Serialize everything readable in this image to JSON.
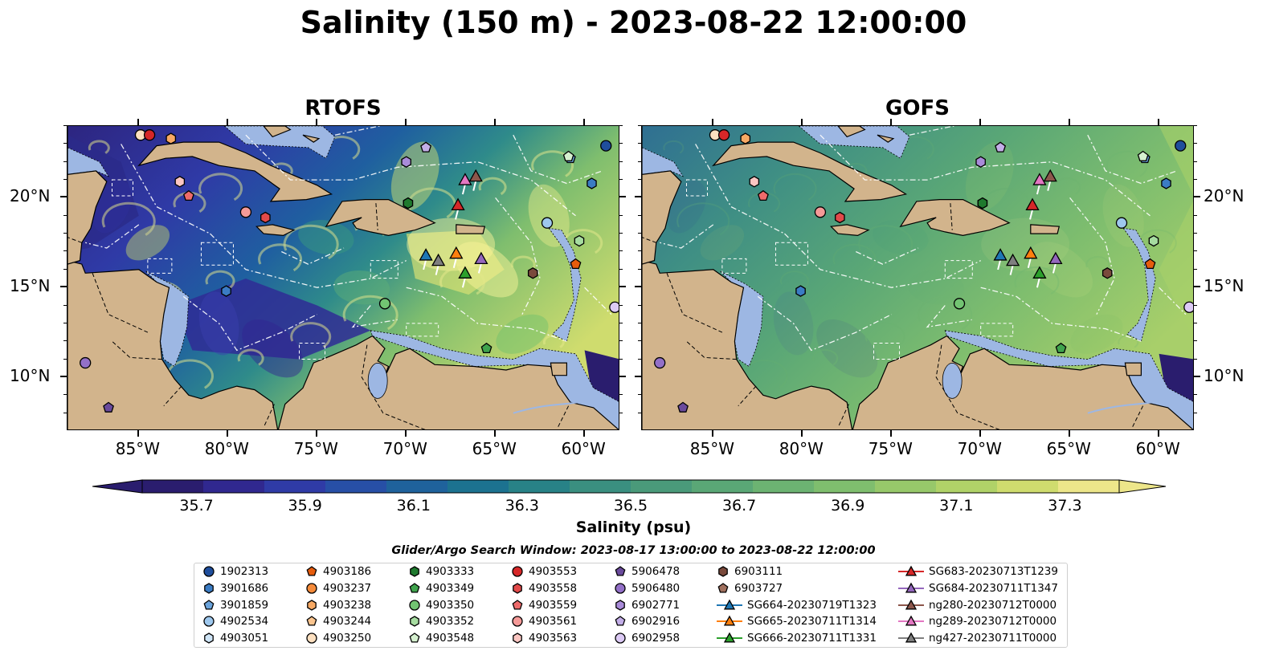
{
  "title": "Salinity (150 m) - 2023-08-22 12:00:00",
  "panels": [
    {
      "name": "RTOFS",
      "left": 83
    },
    {
      "name": "GOFS",
      "left": 798
    }
  ],
  "map": {
    "lon_range": [
      -89,
      -58
    ],
    "lat_range": [
      7,
      24
    ],
    "lon_ticks": [
      "85°W",
      "80°W",
      "75°W",
      "70°W",
      "65°W",
      "60°W"
    ],
    "lat_ticks": [
      "20°N",
      "15°N",
      "10°N"
    ],
    "land_color": "#d2b48c",
    "shelf_color": "#9db7e3"
  },
  "colorbar": {
    "title": "Salinity (psu)",
    "ticks": [
      "35.7",
      "35.9",
      "36.1",
      "36.3",
      "36.5",
      "36.7",
      "36.9",
      "37.1",
      "37.3"
    ],
    "colors": [
      "#2a1d6e",
      "#30288f",
      "#2f3ba6",
      "#274fa6",
      "#1f629c",
      "#1c7290",
      "#288287",
      "#3a8f80",
      "#4a9a7a",
      "#5aa776",
      "#6cb372",
      "#7fbe6e",
      "#97c86a",
      "#b0d268",
      "#cfdc6e",
      "#ede68a"
    ]
  },
  "search_window": "Glider/Argo Search Window: 2023-08-17 13:00:00 to 2023-08-22 12:00:00",
  "legend": {
    "columns": [
      [
        {
          "label": "1902313",
          "marker": "circle",
          "color": "#1f4e9c"
        },
        {
          "label": "3901686",
          "marker": "hexagon",
          "color": "#3b7cc4"
        },
        {
          "label": "3901859",
          "marker": "pentagon",
          "color": "#6aa3db"
        },
        {
          "label": "4902534",
          "marker": "circle",
          "color": "#9ec8ee"
        },
        {
          "label": "4903051",
          "marker": "hexagon",
          "color": "#cfe5f7"
        }
      ],
      [
        {
          "label": "4903186",
          "marker": "pentagon",
          "color": "#e65c0d"
        },
        {
          "label": "4903237",
          "marker": "circle",
          "color": "#f58b3a"
        },
        {
          "label": "4903238",
          "marker": "hexagon",
          "color": "#f7a964"
        },
        {
          "label": "4903244",
          "marker": "pentagon",
          "color": "#fbc58f"
        },
        {
          "label": "4903250",
          "marker": "circle",
          "color": "#fde0c0"
        }
      ],
      [
        {
          "label": "4903333",
          "marker": "hexagon",
          "color": "#1f7a2e"
        },
        {
          "label": "4903349",
          "marker": "pentagon",
          "color": "#3fa34d"
        },
        {
          "label": "4903350",
          "marker": "circle",
          "color": "#72c472"
        },
        {
          "label": "4903352",
          "marker": "hexagon",
          "color": "#a6dca0"
        },
        {
          "label": "4903548",
          "marker": "pentagon",
          "color": "#d5f0cf"
        }
      ],
      [
        {
          "label": "4903553",
          "marker": "circle",
          "color": "#d62728"
        },
        {
          "label": "4903558",
          "marker": "hexagon",
          "color": "#e24a4a"
        },
        {
          "label": "4903559",
          "marker": "pentagon",
          "color": "#ee6b6b"
        },
        {
          "label": "4903561",
          "marker": "circle",
          "color": "#f59a98"
        },
        {
          "label": "4903563",
          "marker": "hexagon",
          "color": "#fbc6c2"
        }
      ],
      [
        {
          "label": "5906478",
          "marker": "pentagon",
          "color": "#6a4a9c"
        },
        {
          "label": "5906480",
          "marker": "circle",
          "color": "#9370c8"
        },
        {
          "label": "6902771",
          "marker": "hexagon",
          "color": "#a98bd9"
        },
        {
          "label": "6902916",
          "marker": "pentagon",
          "color": "#c3aee8"
        },
        {
          "label": "6902958",
          "marker": "circle",
          "color": "#dccaf5"
        }
      ],
      [
        {
          "label": "6903111",
          "marker": "hexagon",
          "color": "#7a4a3c"
        },
        {
          "label": "6903727",
          "marker": "pentagon",
          "color": "#a0705e"
        },
        {
          "label": "SG664-20230719T1323",
          "marker": "triangle",
          "color": "#1f77b4"
        },
        {
          "label": "SG665-20230711T1314",
          "marker": "triangle",
          "color": "#ff7f0e"
        },
        {
          "label": "SG666-20230711T1331",
          "marker": "triangle",
          "color": "#2ca02c"
        }
      ],
      [
        {
          "label": "SG683-20230713T1239",
          "marker": "triangle",
          "color": "#d62728"
        },
        {
          "label": "SG684-20230711T1347",
          "marker": "triangle",
          "color": "#9467bd"
        },
        {
          "label": "ng280-20230712T0000",
          "marker": "triangle",
          "color": "#8c564b"
        },
        {
          "label": "ng289-20230712T0000",
          "marker": "triangle",
          "color": "#e377c2"
        },
        {
          "label": "ng427-20230711T0000",
          "marker": "triangle",
          "color": "#7f7f7f"
        }
      ]
    ]
  },
  "floats": [
    {
      "id": "1902313",
      "lon": -58.8,
      "lat": 22.9
    },
    {
      "id": "3901686",
      "lon": -59.6,
      "lat": 20.8
    },
    {
      "id": "3901859",
      "lon": -60.8,
      "lat": 22.2
    },
    {
      "id": "4902534",
      "lon": -62.1,
      "lat": 18.6
    },
    {
      "id": "4903051",
      "lon": -69.9,
      "lat": 19.7
    },
    {
      "id": "4903186",
      "lon": -60.5,
      "lat": 16.3
    },
    {
      "id": "4903238",
      "lon": -83.2,
      "lat": 23.3
    },
    {
      "id": "4903250",
      "lon": -84.9,
      "lat": 23.5
    },
    {
      "id": "4903333",
      "lon": -69.9,
      "lat": 19.7
    },
    {
      "id": "4903349",
      "lon": -65.5,
      "lat": 11.6
    },
    {
      "id": "4903350",
      "lon": -71.2,
      "lat": 14.1
    },
    {
      "id": "4903352",
      "lon": -60.3,
      "lat": 17.6
    },
    {
      "id": "4903548",
      "lon": -60.9,
      "lat": 22.3
    },
    {
      "id": "4903553",
      "lon": -84.4,
      "lat": 23.5
    },
    {
      "id": "4903558",
      "lon": -77.9,
      "lat": 18.9
    },
    {
      "id": "4903559",
      "lon": -82.2,
      "lat": 20.1
    },
    {
      "id": "4903561",
      "lon": -79.0,
      "lat": 19.2
    },
    {
      "id": "4903563",
      "lon": -82.7,
      "lat": 20.9
    },
    {
      "id": "5906478",
      "lon": -86.7,
      "lat": 8.3
    },
    {
      "id": "5906480",
      "lon": -88.0,
      "lat": 10.8
    },
    {
      "id": "6902771",
      "lon": -70.0,
      "lat": 22.0
    },
    {
      "id": "6902916",
      "lon": -68.9,
      "lat": 22.8
    },
    {
      "id": "6902958",
      "lon": -58.3,
      "lat": 13.9
    },
    {
      "id": "6903111",
      "lon": -62.9,
      "lat": 15.8
    },
    {
      "id": "3901686b",
      "lon": -80.1,
      "lat": 14.8
    }
  ],
  "gliders": [
    {
      "id": "SG664",
      "lon": -68.9,
      "lat": 16.8,
      "color": "#1f77b4"
    },
    {
      "id": "ng427",
      "lon": -68.2,
      "lat": 16.5,
      "color": "#7f7f7f"
    },
    {
      "id": "SG665",
      "lon": -67.2,
      "lat": 16.9,
      "color": "#ff7f0e"
    },
    {
      "id": "SG684",
      "lon": -65.8,
      "lat": 16.6,
      "color": "#9467bd"
    },
    {
      "id": "SG666",
      "lon": -66.7,
      "lat": 15.8,
      "color": "#2ca02c"
    },
    {
      "id": "SG683",
      "lon": -67.1,
      "lat": 19.6,
      "color": "#d62728"
    },
    {
      "id": "ng289",
      "lon": -66.7,
      "lat": 21.0,
      "color": "#e377c2"
    },
    {
      "id": "ng280",
      "lon": -66.1,
      "lat": 21.2,
      "color": "#8c564b"
    }
  ]
}
